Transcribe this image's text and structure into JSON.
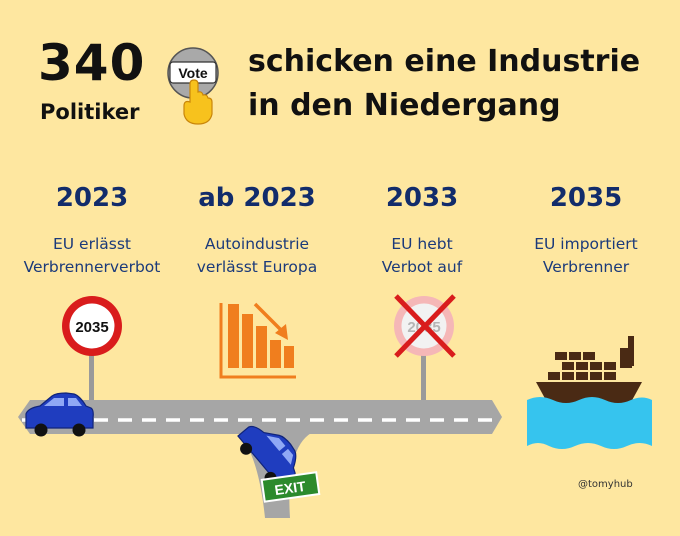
{
  "header": {
    "number": "340",
    "subject": "Politiker",
    "vote_label": "Vote",
    "headline_line1": "schicken eine Industrie",
    "headline_line2": "in den Niedergang"
  },
  "timeline": [
    {
      "year": "2023",
      "desc_line1": "EU erlässt",
      "desc_line2": "Verbrennerverbot",
      "icon": "speed-limit-sign-icon"
    },
    {
      "year": "ab 2023",
      "desc_line1": "Autoindustrie",
      "desc_line2": "verlässt Europa",
      "icon": "declining-bar-chart-icon"
    },
    {
      "year": "2033",
      "desc_line1": "EU hebt",
      "desc_line2": "Verbot auf",
      "icon": "crossed-out-sign-icon"
    },
    {
      "year": "2035",
      "desc_line1": "EU importiert",
      "desc_line2": "Verbrenner",
      "icon": "cargo-ship-icon"
    }
  ],
  "sign_label": "2035",
  "crossed_sign_label": "2035",
  "exit_label": "EXIT",
  "credit": "@tomyhub",
  "colors": {
    "background": "#FEE7A0",
    "year_text": "#122C6B",
    "car": "#1F3DBF",
    "road": "#A6A6A6",
    "chart_orange": "#F07E1E",
    "sign_red": "#D91C1C",
    "exit_green": "#2C8A2C",
    "ship_brown": "#4A2A14",
    "water": "#36C4EE"
  }
}
